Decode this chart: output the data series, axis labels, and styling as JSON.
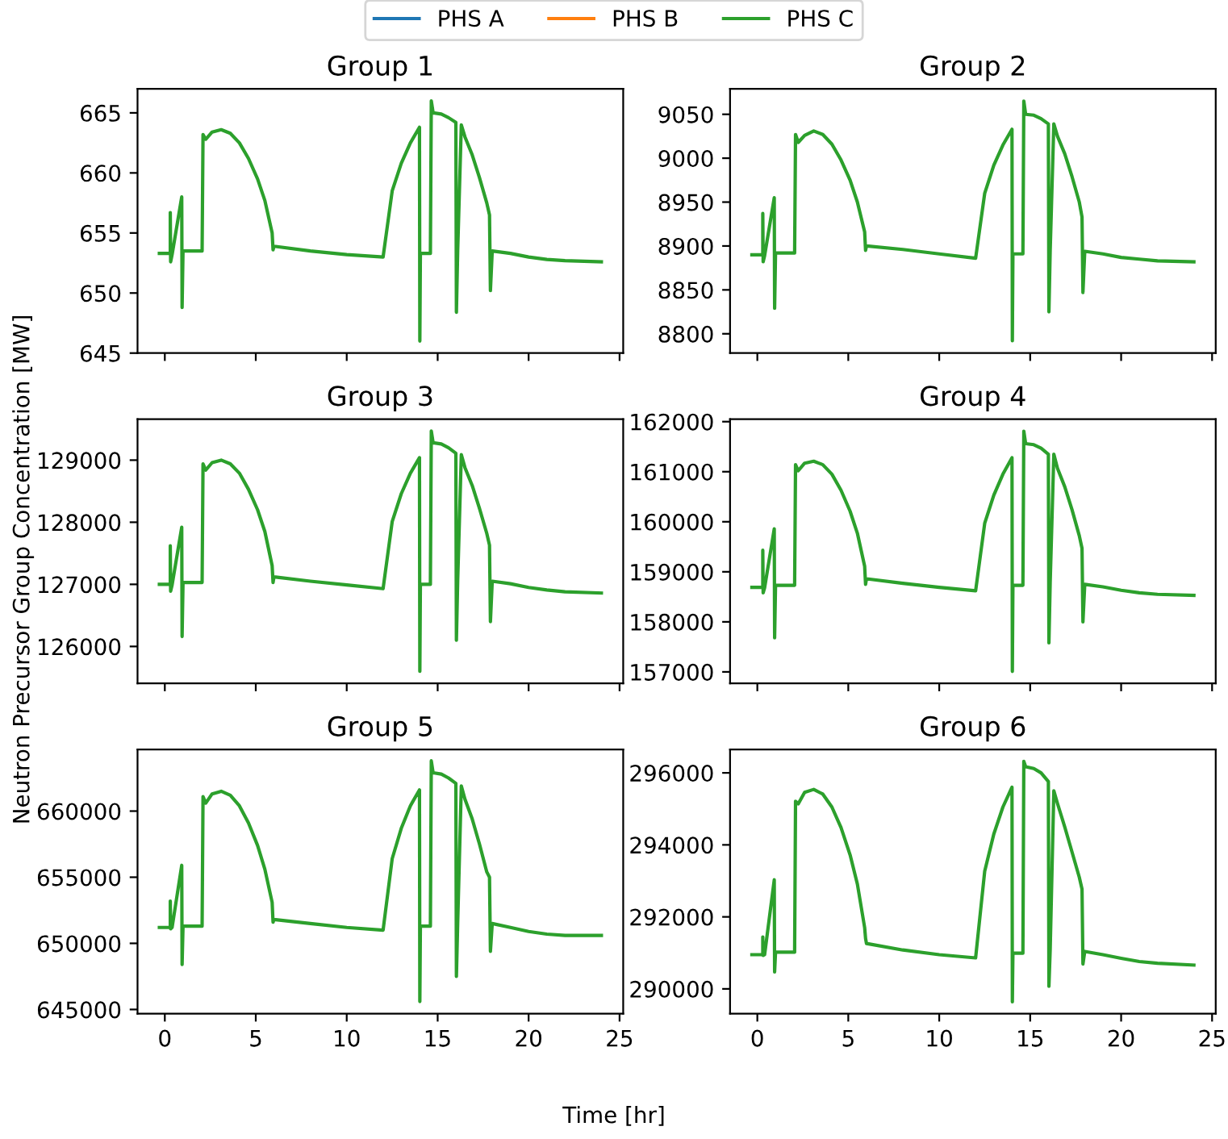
{
  "chart_data": [
    {
      "type": "line",
      "title": "Group 1",
      "xlabel": "Time [hr]",
      "ylabel": "Neutron Precursor Group Concentration [MW]",
      "legend": "top",
      "tick_labels": "y",
      "x": [
        -0.3,
        0.3,
        0.3,
        0.32,
        0.4,
        0.93,
        0.95,
        1.0,
        2.05,
        2.1,
        2.25,
        2.6,
        3.1,
        3.6,
        4.1,
        4.6,
        5.1,
        5.5,
        5.9,
        5.95,
        6.0,
        8,
        10,
        12.0,
        12.5,
        13.0,
        13.5,
        14.0,
        14.02,
        14.05,
        14.6,
        14.65,
        14.75,
        15.2,
        15.6,
        16.0,
        16.03,
        16.1,
        16.3,
        16.5,
        16.9,
        17.3,
        17.7,
        17.85,
        17.9,
        18.0,
        19,
        20,
        21,
        22,
        24
      ],
      "xlim": [
        -1.5,
        25.2
      ],
      "xticks": [
        0,
        5,
        10,
        15,
        20,
        25
      ],
      "ylim": [
        645,
        667
      ],
      "yticks": [
        645,
        650,
        655,
        660,
        665
      ],
      "series": [
        {
          "name": "PHS A",
          "color": "#1f77b4",
          "values": [
            null,
            null,
            null,
            null,
            null,
            null,
            null,
            null,
            null,
            null,
            null,
            null,
            null,
            null,
            null,
            null,
            null,
            null,
            null,
            null,
            null,
            null,
            null,
            null,
            null,
            null,
            null,
            null,
            null,
            null,
            null,
            null,
            null,
            null,
            null,
            null,
            null,
            null,
            null,
            null,
            null,
            null,
            null,
            null,
            null,
            null,
            null,
            null,
            null,
            null,
            null
          ]
        },
        {
          "name": "PHS B",
          "color": "#ff7f0e",
          "values": [
            null,
            null,
            null,
            null,
            null,
            null,
            null,
            null,
            null,
            null,
            null,
            null,
            null,
            null,
            null,
            null,
            null,
            null,
            null,
            null,
            null,
            null,
            null,
            null,
            null,
            null,
            null,
            null,
            null,
            null,
            null,
            null,
            null,
            null,
            null,
            null,
            null,
            null,
            null,
            null,
            null,
            null,
            null,
            null,
            null,
            null,
            null,
            null,
            null,
            null,
            null
          ]
        },
        {
          "name": "PHS C",
          "color": "#2ca02c",
          "values": [
            653.3,
            653.3,
            656.7,
            652.6,
            653.2,
            658.0,
            648.8,
            653.5,
            653.5,
            663.2,
            662.8,
            663.4,
            663.6,
            663.3,
            662.5,
            661.2,
            659.5,
            657.7,
            655.0,
            653.6,
            653.9,
            653.5,
            653.2,
            653.0,
            658.5,
            660.8,
            662.5,
            663.8,
            646.0,
            653.3,
            653.3,
            666.0,
            665.0,
            664.9,
            664.6,
            664.2,
            648.4,
            653.5,
            664.0,
            663.0,
            661.5,
            659.6,
            657.5,
            656.5,
            650.2,
            653.5,
            653.3,
            653.0,
            652.8,
            652.7,
            652.6
          ]
        }
      ]
    },
    {
      "type": "line",
      "title": "Group 2",
      "tick_labels": "y",
      "x": [
        -0.3,
        0.3,
        0.3,
        0.32,
        0.4,
        0.93,
        0.95,
        1.0,
        2.05,
        2.1,
        2.25,
        2.6,
        3.1,
        3.6,
        4.1,
        4.6,
        5.1,
        5.5,
        5.9,
        5.95,
        6.0,
        8,
        10,
        12.0,
        12.5,
        13.0,
        13.5,
        14.0,
        14.02,
        14.05,
        14.6,
        14.65,
        14.75,
        15.2,
        15.6,
        16.0,
        16.03,
        16.1,
        16.3,
        16.5,
        16.9,
        17.3,
        17.7,
        17.85,
        17.9,
        18.0,
        19,
        20,
        21,
        22,
        24
      ],
      "xlim": [
        -1.5,
        25.2
      ],
      "xticks": [
        0,
        5,
        10,
        15,
        20,
        25
      ],
      "ylim": [
        8778,
        9079
      ],
      "yticks": [
        8800,
        8850,
        8900,
        8950,
        9000,
        9050
      ],
      "series": [
        {
          "color": "#1f77b4",
          "values": [
            null,
            null,
            null,
            null,
            null,
            null,
            null,
            null,
            null,
            null,
            null,
            null,
            null,
            null,
            null,
            null,
            null,
            null,
            null,
            null,
            null,
            null,
            null,
            null,
            null,
            null,
            null,
            null,
            null,
            null,
            null,
            null,
            null,
            null,
            null,
            null,
            null,
            null,
            null,
            null,
            null,
            null,
            null,
            null,
            null,
            null,
            null,
            null,
            null,
            null,
            null
          ]
        },
        {
          "color": "#ff7f0e",
          "values": [
            null,
            null,
            null,
            null,
            null,
            null,
            null,
            null,
            null,
            null,
            null,
            null,
            null,
            null,
            null,
            null,
            null,
            null,
            null,
            null,
            null,
            null,
            null,
            null,
            null,
            null,
            null,
            null,
            null,
            null,
            null,
            null,
            null,
            null,
            null,
            null,
            null,
            null,
            null,
            null,
            null,
            null,
            null,
            null,
            null,
            null,
            null,
            null,
            null,
            null,
            null
          ]
        },
        {
          "color": "#2ca02c",
          "values": [
            8890,
            8890,
            8937,
            8882,
            8889,
            8955,
            8829,
            8892,
            8892,
            9027,
            9018,
            9026,
            9031,
            9027,
            9016,
            8998,
            8975,
            8950,
            8916,
            8895,
            8900,
            8896,
            8891,
            8886,
            8960,
            8992,
            9015,
            9033,
            8792,
            8891,
            8891,
            9065,
            9050,
            9049,
            9045,
            9039,
            8825,
            8895,
            9039,
            9025,
            9005,
            8979,
            8950,
            8933,
            8847,
            8894,
            8891,
            8887,
            8885,
            8883,
            8882
          ]
        }
      ]
    },
    {
      "type": "line",
      "title": "Group 3",
      "tick_labels": "y",
      "x": [
        -0.3,
        0.3,
        0.3,
        0.32,
        0.4,
        0.93,
        0.95,
        1.0,
        2.05,
        2.1,
        2.25,
        2.6,
        3.1,
        3.6,
        4.1,
        4.6,
        5.1,
        5.5,
        5.9,
        5.95,
        6.0,
        8,
        10,
        12.0,
        12.5,
        13.0,
        13.5,
        14.0,
        14.02,
        14.05,
        14.6,
        14.65,
        14.75,
        15.2,
        15.6,
        16.0,
        16.03,
        16.1,
        16.3,
        16.5,
        16.9,
        17.3,
        17.7,
        17.85,
        17.9,
        18.0,
        19,
        20,
        21,
        22,
        24
      ],
      "xlim": [
        -1.5,
        25.2
      ],
      "xticks": [
        0,
        5,
        10,
        15,
        20,
        25
      ],
      "ylim": [
        125405,
        129660
      ],
      "yticks": [
        126000,
        127000,
        128000,
        129000
      ],
      "series": [
        {
          "color": "#1f77b4",
          "values": [
            null,
            null,
            null,
            null,
            null,
            null,
            null,
            null,
            null,
            null,
            null,
            null,
            null,
            null,
            null,
            null,
            null,
            null,
            null,
            null,
            null,
            null,
            null,
            null,
            null,
            null,
            null,
            null,
            null,
            null,
            null,
            null,
            null,
            null,
            null,
            null,
            null,
            null,
            null,
            null,
            null,
            null,
            null,
            null,
            null,
            null,
            null,
            null,
            null,
            null,
            null
          ]
        },
        {
          "color": "#ff7f0e",
          "values": [
            null,
            null,
            null,
            null,
            null,
            null,
            null,
            null,
            null,
            null,
            null,
            null,
            null,
            null,
            null,
            null,
            null,
            null,
            null,
            null,
            null,
            null,
            null,
            null,
            null,
            null,
            null,
            null,
            null,
            null,
            null,
            null,
            null,
            null,
            null,
            null,
            null,
            null,
            null,
            null,
            null,
            null,
            null,
            null,
            null,
            null,
            null,
            null,
            null,
            null,
            null
          ]
        },
        {
          "color": "#2ca02c",
          "values": [
            127000,
            127000,
            127620,
            126890,
            126990,
            127920,
            126160,
            127030,
            127030,
            128940,
            128840,
            128960,
            129000,
            128940,
            128790,
            128530,
            128200,
            127850,
            127300,
            127030,
            127120,
            127050,
            126990,
            126930,
            128010,
            128460,
            128790,
            129040,
            125600,
            127000,
            127000,
            129470,
            129280,
            129260,
            129200,
            129110,
            126100,
            127050,
            129090,
            128880,
            128590,
            128220,
            127820,
            127630,
            126400,
            127050,
            127010,
            126950,
            126910,
            126880,
            126860
          ]
        }
      ]
    },
    {
      "type": "line",
      "title": "Group 4",
      "tick_labels": "y",
      "x": [
        -0.3,
        0.3,
        0.3,
        0.32,
        0.4,
        0.93,
        0.95,
        1.0,
        2.05,
        2.1,
        2.25,
        2.6,
        3.1,
        3.6,
        4.1,
        4.6,
        5.1,
        5.5,
        5.9,
        5.95,
        6.0,
        8,
        10,
        12.0,
        12.5,
        13.0,
        13.5,
        14.0,
        14.02,
        14.05,
        14.6,
        14.65,
        14.75,
        15.2,
        15.6,
        16.0,
        16.03,
        16.1,
        16.3,
        16.5,
        16.9,
        17.3,
        17.7,
        17.85,
        17.9,
        18.0,
        19,
        20,
        21,
        22,
        24
      ],
      "xlim": [
        -1.5,
        25.2
      ],
      "xticks": [
        0,
        5,
        10,
        15,
        20,
        25
      ],
      "ylim": [
        156770,
        162050
      ],
      "yticks": [
        157000,
        158000,
        159000,
        160000,
        161000,
        162000
      ],
      "series": [
        {
          "color": "#1f77b4",
          "values": [
            null,
            null,
            null,
            null,
            null,
            null,
            null,
            null,
            null,
            null,
            null,
            null,
            null,
            null,
            null,
            null,
            null,
            null,
            null,
            null,
            null,
            null,
            null,
            null,
            null,
            null,
            null,
            null,
            null,
            null,
            null,
            null,
            null,
            null,
            null,
            null,
            null,
            null,
            null,
            null,
            null,
            null,
            null,
            null,
            null,
            null,
            null,
            null,
            null,
            null,
            null
          ]
        },
        {
          "color": "#ff7f0e",
          "values": [
            null,
            null,
            null,
            null,
            null,
            null,
            null,
            null,
            null,
            null,
            null,
            null,
            null,
            null,
            null,
            null,
            null,
            null,
            null,
            null,
            null,
            null,
            null,
            null,
            null,
            null,
            null,
            null,
            null,
            null,
            null,
            null,
            null,
            null,
            null,
            null,
            null,
            null,
            null,
            null,
            null,
            null,
            null,
            null,
            null,
            null,
            null,
            null,
            null,
            null,
            null
          ]
        },
        {
          "color": "#2ca02c",
          "values": [
            158690,
            158690,
            159430,
            158580,
            158680,
            159860,
            157680,
            158730,
            158730,
            161140,
            161020,
            161170,
            161210,
            161140,
            160950,
            160630,
            160210,
            159770,
            159110,
            158750,
            158860,
            158770,
            158690,
            158620,
            159970,
            160530,
            160950,
            161280,
            157010,
            158730,
            158730,
            161810,
            161560,
            161540,
            161470,
            161350,
            157580,
            158790,
            161350,
            161070,
            160700,
            160240,
            159720,
            159470,
            158000,
            158750,
            158700,
            158630,
            158580,
            158550,
            158530
          ]
        }
      ]
    },
    {
      "type": "line",
      "title": "Group 5",
      "x": [
        -0.3,
        0.3,
        0.3,
        0.32,
        0.4,
        0.93,
        0.95,
        1.0,
        2.05,
        2.1,
        2.25,
        2.6,
        3.1,
        3.6,
        4.1,
        4.6,
        5.1,
        5.5,
        5.9,
        5.95,
        6.0,
        8,
        10,
        12.0,
        12.5,
        13.0,
        13.5,
        14.0,
        14.02,
        14.05,
        14.6,
        14.65,
        14.75,
        15.2,
        15.6,
        16.0,
        16.03,
        16.1,
        16.3,
        16.5,
        16.9,
        17.3,
        17.7,
        17.85,
        17.9,
        18.0,
        19,
        20,
        21,
        22,
        24
      ],
      "xlim": [
        -1.5,
        25.2
      ],
      "xticks": [
        0,
        5,
        10,
        15,
        20,
        25
      ],
      "ylim": [
        644680,
        664660
      ],
      "yticks": [
        645000,
        650000,
        655000,
        660000
      ],
      "series": [
        {
          "color": "#1f77b4",
          "values": [
            null,
            null,
            null,
            null,
            null,
            null,
            null,
            null,
            null,
            null,
            null,
            null,
            null,
            null,
            null,
            null,
            null,
            null,
            null,
            null,
            null,
            null,
            null,
            null,
            null,
            null,
            null,
            null,
            null,
            null,
            null,
            null,
            null,
            null,
            null,
            null,
            null,
            null,
            null,
            null,
            null,
            null,
            null,
            null,
            null,
            null,
            null,
            null,
            null,
            null,
            null
          ]
        },
        {
          "color": "#ff7f0e",
          "values": [
            null,
            null,
            null,
            null,
            null,
            null,
            null,
            null,
            null,
            null,
            null,
            null,
            null,
            null,
            null,
            null,
            null,
            null,
            null,
            null,
            null,
            null,
            null,
            null,
            null,
            null,
            null,
            null,
            null,
            null,
            null,
            null,
            null,
            null,
            null,
            null,
            null,
            null,
            null,
            null,
            null,
            null,
            null,
            null,
            null,
            null,
            null,
            null,
            null,
            null,
            null
          ]
        },
        {
          "color": "#2ca02c",
          "values": [
            651200,
            651200,
            653200,
            651100,
            651200,
            655900,
            648400,
            651300,
            651300,
            661100,
            660600,
            661300,
            661500,
            661200,
            660400,
            659100,
            657400,
            655600,
            653100,
            651600,
            651800,
            651500,
            651200,
            651000,
            656400,
            658700,
            660400,
            661600,
            645600,
            651300,
            651300,
            663800,
            662900,
            662800,
            662500,
            662100,
            647500,
            651500,
            661900,
            660900,
            659400,
            657500,
            655400,
            655000,
            649400,
            651500,
            651200,
            650900,
            650700,
            650600,
            650600
          ]
        }
      ]
    },
    {
      "type": "line",
      "title": "Group 6",
      "x": [
        -0.3,
        0.3,
        0.3,
        0.32,
        0.4,
        0.93,
        0.95,
        1.0,
        2.05,
        2.1,
        2.25,
        2.6,
        3.1,
        3.6,
        4.1,
        4.6,
        5.1,
        5.5,
        5.9,
        5.95,
        6.0,
        8,
        10,
        12.0,
        12.5,
        13.0,
        13.5,
        14.0,
        14.02,
        14.05,
        14.6,
        14.65,
        14.75,
        15.2,
        15.6,
        16.0,
        16.03,
        16.1,
        16.3,
        16.5,
        16.9,
        17.3,
        17.7,
        17.85,
        17.9,
        18.0,
        19,
        20,
        21,
        22,
        24
      ],
      "xlim": [
        -1.5,
        25.2
      ],
      "xticks": [
        0,
        5,
        10,
        15,
        20,
        25
      ],
      "ylim": [
        289310,
        296650
      ],
      "yticks": [
        290000,
        292000,
        294000,
        296000
      ],
      "series": [
        {
          "color": "#1f77b4",
          "values": [
            null,
            null,
            null,
            null,
            null,
            null,
            null,
            null,
            null,
            null,
            null,
            null,
            null,
            null,
            null,
            null,
            null,
            null,
            null,
            null,
            null,
            null,
            null,
            null,
            null,
            null,
            null,
            null,
            null,
            null,
            null,
            null,
            null,
            null,
            null,
            null,
            null,
            null,
            null,
            null,
            null,
            null,
            null,
            null,
            null,
            null,
            null,
            null,
            null,
            null,
            null
          ]
        },
        {
          "color": "#ff7f0e",
          "values": [
            null,
            null,
            null,
            null,
            null,
            null,
            null,
            null,
            null,
            null,
            null,
            null,
            null,
            null,
            null,
            null,
            null,
            null,
            null,
            null,
            null,
            null,
            null,
            null,
            null,
            null,
            null,
            null,
            null,
            null,
            null,
            null,
            null,
            null,
            null,
            null,
            null,
            null,
            null,
            null,
            null,
            null,
            null,
            null,
            null,
            null,
            null,
            null,
            null,
            null,
            null
          ]
        },
        {
          "color": "#2ca02c",
          "values": [
            290950,
            290950,
            291440,
            290930,
            290950,
            293030,
            290470,
            291020,
            291020,
            295210,
            295140,
            295460,
            295540,
            295410,
            295050,
            294480,
            293720,
            292910,
            291700,
            291400,
            291260,
            291080,
            290950,
            290860,
            293270,
            294300,
            295050,
            295600,
            289640,
            290990,
            290990,
            296320,
            296170,
            296120,
            296000,
            295760,
            290070,
            291090,
            295500,
            295150,
            294500,
            293800,
            293100,
            292770,
            290690,
            291040,
            290950,
            290850,
            290760,
            290710,
            290660
          ]
        }
      ]
    }
  ]
}
